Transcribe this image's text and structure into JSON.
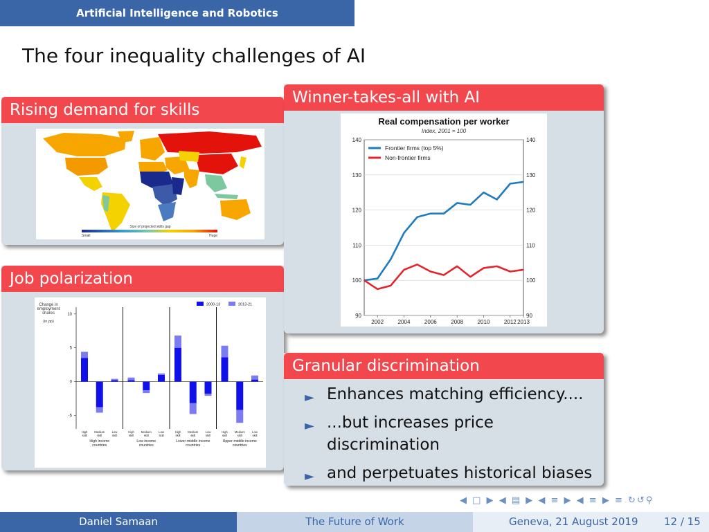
{
  "header": {
    "section": "Artificial Intelligence and Robotics"
  },
  "slide": {
    "title": "The four inequality challenges of AI"
  },
  "blocks": {
    "skills": {
      "title": "Rising demand for skills",
      "legend_title": "Size of projected skills gap",
      "legend_low": "Small",
      "legend_high": "Huge"
    },
    "polarization": {
      "title": "Job polarization",
      "ylabel_line1": "Change in",
      "ylabel_line2": "employment",
      "ylabel_line3": "shares",
      "yunit": "(in pp)",
      "legend": [
        "2000-13",
        "2013-21"
      ],
      "yticks": [
        "10",
        "5",
        "0",
        "-5"
      ],
      "skill_labels": [
        "High skill",
        "Medium skill",
        "Low skill"
      ],
      "groups": [
        "High income countries",
        "Low income countries",
        "Lower-middle income countries",
        "Upper-middle income countries"
      ]
    },
    "winner": {
      "title": "Winner-takes-all with AI"
    },
    "granular": {
      "title": "Granular discrimination",
      "bullets": [
        "Enhances matching efficiency....",
        "...but increases price discrimination",
        "and perpetuates historical biases"
      ]
    }
  },
  "chart_data": [
    {
      "type": "line",
      "title": "Real compensation per worker",
      "subtitle": "Index, 2001 = 100",
      "xlabel": "",
      "ylabel": "",
      "x": [
        2001,
        2002,
        2003,
        2004,
        2005,
        2006,
        2007,
        2008,
        2009,
        2010,
        2011,
        2012,
        2013
      ],
      "xticks": [
        "2002",
        "2004",
        "2006",
        "2008",
        "2010",
        "2012",
        "2013"
      ],
      "yticks": [
        "90",
        "100",
        "110",
        "120",
        "130",
        "140"
      ],
      "ylim": [
        90,
        140
      ],
      "legend_position": "top-left",
      "series": [
        {
          "name": "Frontier firms (top 5%)",
          "color": "#1f7bbf",
          "values": [
            100,
            100.5,
            106,
            113.5,
            118,
            119,
            119,
            122,
            121.5,
            125,
            123,
            127.5,
            128
          ]
        },
        {
          "name": "Non-frontier firms",
          "color": "#e3242b",
          "values": [
            100,
            97.5,
            98.5,
            103,
            104.5,
            102.5,
            101.5,
            104,
            101,
            103.5,
            104,
            102.5,
            103
          ]
        }
      ]
    },
    {
      "type": "bar",
      "title": "",
      "xlabel": "",
      "ylabel": "Change in employment shares (in pp)",
      "ylim": [
        -7,
        11
      ],
      "categories": [
        "High income / High skill",
        "High income / Medium skill",
        "High income / Low skill",
        "Low income / High skill",
        "Low income / Medium skill",
        "Low income / Low skill",
        "Lower-middle income / High skill",
        "Lower-middle income / Medium skill",
        "Lower-middle income / Low skill",
        "Upper-middle income / High skill",
        "Upper-middle income / Medium skill",
        "Upper-middle income / Low skill"
      ],
      "series": [
        {
          "name": "2000-13",
          "color": "#1010e8",
          "values": [
            3.5,
            -3.8,
            0.2,
            0.2,
            -1.3,
            1.0,
            5.0,
            -3.2,
            -1.8,
            3.6,
            -4.2,
            0.3
          ]
        },
        {
          "name": "2013-21",
          "color": "#7b7bf2",
          "values": [
            0.9,
            -0.8,
            0.2,
            0.4,
            -0.4,
            0.2,
            1.8,
            -1.6,
            -0.3,
            1.7,
            -1.9,
            0.6
          ]
        }
      ]
    }
  ],
  "map": {
    "colors": {
      "huge": "#e3120b",
      "high": "#f7a600",
      "medium": "#f4d100",
      "low": "#7ec8a0",
      "small": "#1a2a8c"
    }
  },
  "footer": {
    "author": "Daniel Samaan",
    "talk": "The Future of Work",
    "place_date": "Geneva, 21 August 2019",
    "page": "12 / 15"
  }
}
